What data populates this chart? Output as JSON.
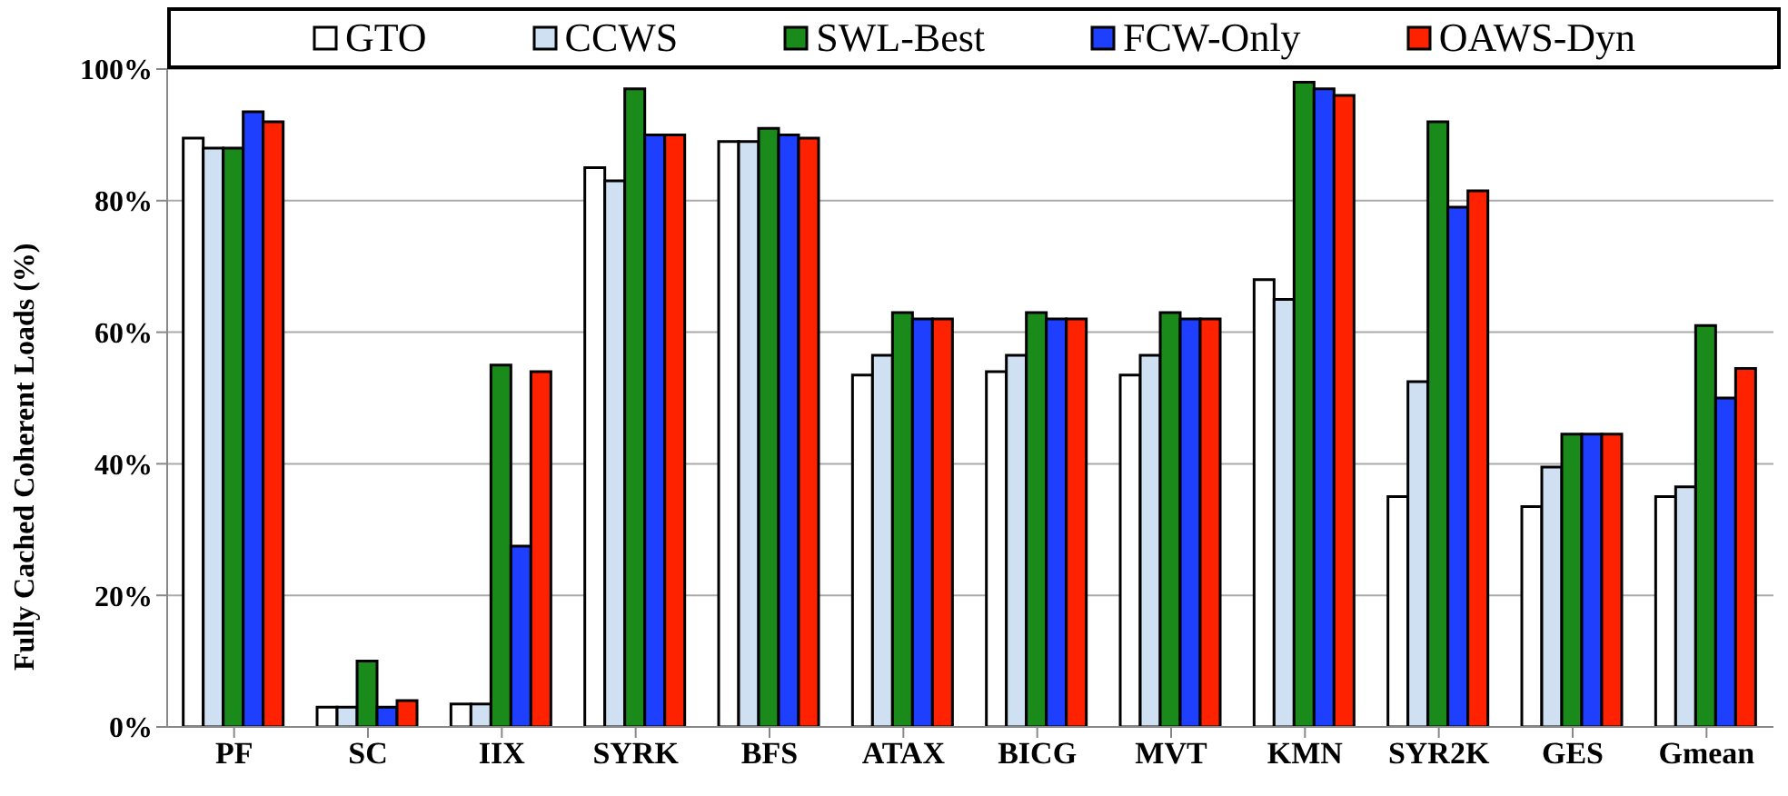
{
  "chart_data": {
    "type": "bar",
    "ylabel": "Fully Cached Coherent Loads (%)",
    "categories": [
      "PF",
      "SC",
      "IIX",
      "SYRK",
      "BFS",
      "ATAX",
      "BICG",
      "MVT",
      "KMN",
      "SYR2K",
      "GES",
      "Gmean"
    ],
    "series": [
      {
        "name": "GTO",
        "color": "#ffffff",
        "values": [
          89.5,
          3,
          3.5,
          85,
          89,
          53.5,
          54,
          53.5,
          68,
          35,
          33.5,
          35
        ]
      },
      {
        "name": "CCWS",
        "color": "#cfe0f3",
        "values": [
          88,
          3,
          3.5,
          83,
          89,
          56.5,
          56.5,
          56.5,
          65,
          52.5,
          39.5,
          36.5
        ]
      },
      {
        "name": "SWL-Best",
        "color": "#1a8a1a",
        "values": [
          88,
          10,
          55,
          97,
          91,
          63,
          63,
          63,
          98,
          92,
          44.5,
          61
        ]
      },
      {
        "name": "FCW-Only",
        "color": "#1f3fff",
        "values": [
          93.5,
          3,
          27.5,
          90,
          90,
          62,
          62,
          62,
          97,
          79,
          44.5,
          50
        ]
      },
      {
        "name": "OAWS-Dyn",
        "color": "#ff2200",
        "values": [
          92,
          4,
          54,
          90,
          89.5,
          62,
          62,
          62,
          96,
          81.5,
          44.5,
          54.5
        ]
      }
    ],
    "ylim": [
      0,
      100
    ],
    "yticks": [
      {
        "value": 0,
        "label": "0%"
      },
      {
        "value": 20,
        "label": "20%"
      },
      {
        "value": 40,
        "label": "40%"
      },
      {
        "value": 60,
        "label": "60%"
      },
      {
        "value": 80,
        "label": "80%"
      },
      {
        "value": 100,
        "label": "100%"
      }
    ],
    "grid": "y",
    "legend": "top"
  }
}
